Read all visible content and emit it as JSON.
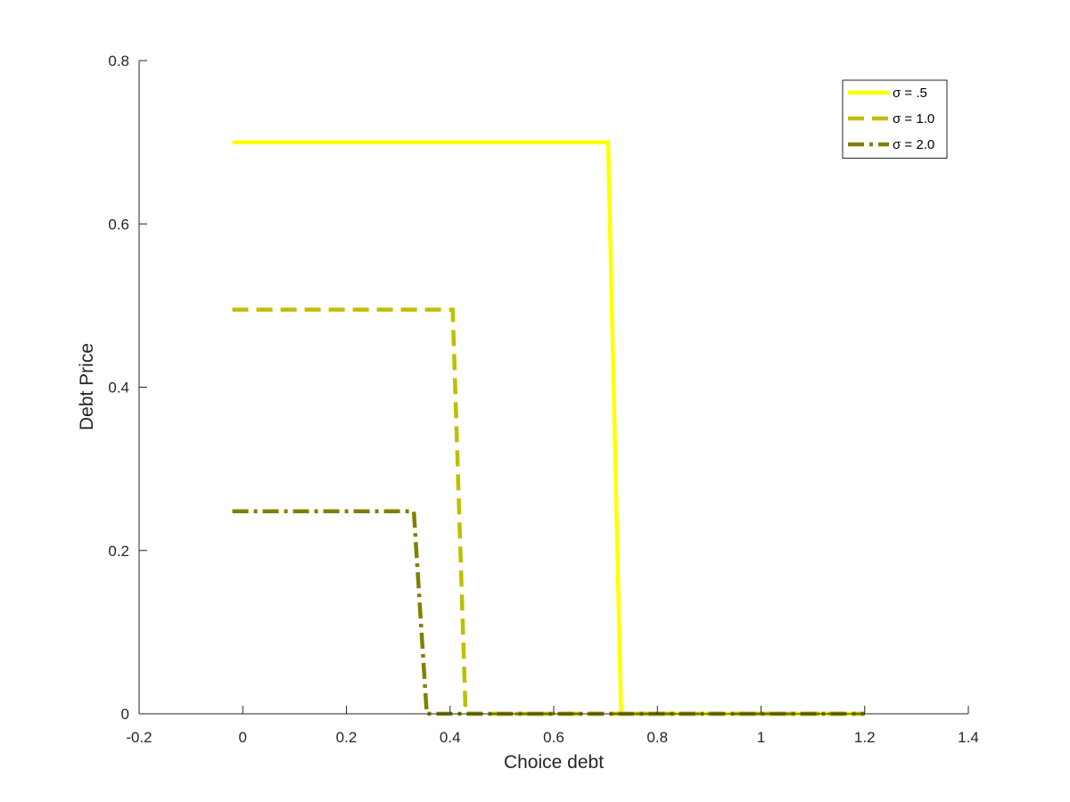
{
  "chart_data": {
    "type": "line",
    "title": "",
    "xlabel": "Choice debt",
    "ylabel": "Debt Price",
    "xlim": [
      -0.2,
      1.4
    ],
    "ylim": [
      0,
      0.8
    ],
    "xticks": [
      -0.2,
      0,
      0.2,
      0.4,
      0.6,
      0.8,
      1,
      1.2,
      1.4
    ],
    "xtick_labels": [
      "-0.2",
      "0",
      "0.2",
      "0.4",
      "0.6",
      "0.8",
      "1",
      "1.2",
      "1.4"
    ],
    "yticks": [
      0,
      0.2,
      0.4,
      0.6,
      0.8
    ],
    "ytick_labels": [
      "0",
      "0.2",
      "0.4",
      "0.6",
      "0.8"
    ],
    "grid": false,
    "legend_position": "top-right",
    "series": [
      {
        "name": "σ = .5",
        "color": "#ffff00",
        "style": "solid",
        "x": [
          -0.02,
          0.705,
          0.73,
          1.2
        ],
        "y": [
          0.7,
          0.7,
          0,
          0
        ]
      },
      {
        "name": "σ = 1.0",
        "color": "#bfbf00",
        "style": "dashed",
        "x": [
          -0.02,
          0.405,
          0.43,
          1.2
        ],
        "y": [
          0.495,
          0.495,
          0,
          0
        ]
      },
      {
        "name": "σ = 2.0",
        "color": "#808000",
        "style": "dashdot",
        "x": [
          -0.02,
          0.33,
          0.355,
          1.2
        ],
        "y": [
          0.248,
          0.248,
          0,
          0
        ]
      }
    ]
  }
}
